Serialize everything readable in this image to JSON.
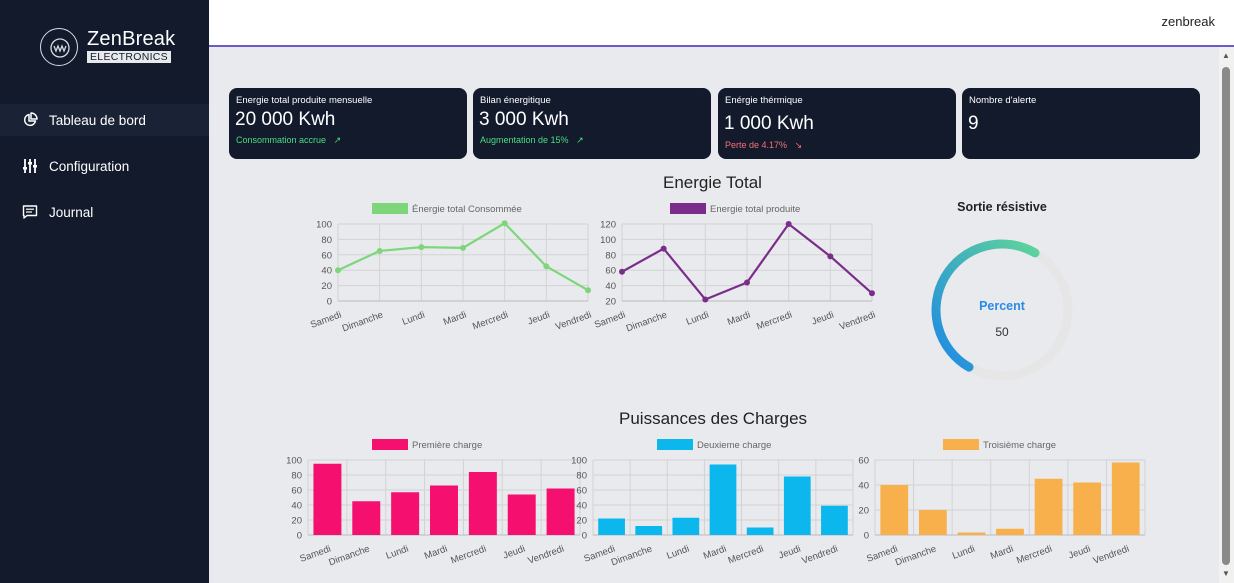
{
  "brand": {
    "name": "ZenBreak",
    "sub": "ELECTRONICS"
  },
  "nav": [
    {
      "label": "Tableau de bord",
      "icon": "pie-chart-icon",
      "active": true
    },
    {
      "label": "Configuration",
      "icon": "sliders-icon",
      "active": false
    },
    {
      "label": "Journal",
      "icon": "message-square-icon",
      "active": false
    }
  ],
  "user": "zenbreak",
  "cards": [
    {
      "title": "Energie total produite mensuelle",
      "value": "20 000 Kwh",
      "sub": "Consommation accrue",
      "arrow": "↗",
      "sub_color": "#4ade80"
    },
    {
      "title": "Bilan énergitique",
      "value": "3 000 Kwh",
      "sub": "Augmentation de 15%",
      "arrow": "↗",
      "sub_color": "#4ade80"
    },
    {
      "title": "Enérgie thérmique",
      "value": "1 000 Kwh",
      "sub": "Perte de 4.17%",
      "arrow": "↘",
      "sub_color": "#f87171"
    },
    {
      "title": "Nombre d'alerte",
      "value": "9",
      "sub": "",
      "arrow": "",
      "sub_color": "#4ade80"
    }
  ],
  "sections": {
    "energie": "Energie Total",
    "puissances": "Puissances des Charges"
  },
  "gauge": {
    "title": "Sortie résistive",
    "label": "Percent",
    "value": 50,
    "value_text": "50",
    "colors": [
      "#1e88e5",
      "#5fd49a"
    ]
  },
  "chart_data": [
    {
      "type": "line",
      "title": "",
      "series_name": "Énergie total Consommée",
      "color": "#7ed67a",
      "categories": [
        "Samedi",
        "Dimanche",
        "Lundi",
        "Mardi",
        "Mercredi",
        "Jeudi",
        "Vendredi"
      ],
      "values": [
        40,
        65,
        70,
        69,
        101,
        45,
        14
      ],
      "ylim": [
        0,
        100
      ],
      "yticks": [
        0,
        20,
        40,
        60,
        80,
        100
      ],
      "xlabel": "",
      "ylabel": ""
    },
    {
      "type": "line",
      "title": "",
      "series_name": "Energie total produite",
      "color": "#7b2d8b",
      "categories": [
        "Samedi",
        "Dimanche",
        "Lundi",
        "Mardi",
        "Mercredi",
        "Jeudi",
        "Vendredi"
      ],
      "values": [
        58,
        88,
        22,
        44,
        120,
        78,
        30
      ],
      "ylim": [
        20,
        120
      ],
      "yticks": [
        20,
        40,
        60,
        80,
        100,
        120
      ],
      "xlabel": "",
      "ylabel": ""
    },
    {
      "type": "bar",
      "title": "",
      "series_name": "Première charge",
      "color": "#f50f6e",
      "categories": [
        "Samedi",
        "Dimanche",
        "Lundi",
        "Mardi",
        "Mercredi",
        "Jeudi",
        "Vendredi"
      ],
      "values": [
        95,
        45,
        57,
        66,
        84,
        54,
        62
      ],
      "ylim": [
        0,
        100
      ],
      "yticks": [
        0,
        20,
        40,
        60,
        80,
        100
      ],
      "xlabel": "",
      "ylabel": ""
    },
    {
      "type": "bar",
      "title": "",
      "series_name": "Deuxieme charge",
      "color": "#0cb7ee",
      "categories": [
        "Samedi",
        "Dimanche",
        "Lundi",
        "Mardi",
        "Mercredi",
        "Jeudi",
        "Vendredi"
      ],
      "values": [
        22,
        12,
        23,
        94,
        10,
        78,
        39
      ],
      "ylim": [
        0,
        100
      ],
      "yticks": [
        0,
        20,
        40,
        60,
        80,
        100
      ],
      "xlabel": "",
      "ylabel": ""
    },
    {
      "type": "bar",
      "title": "",
      "series_name": "Troisième charge",
      "color": "#f8b04c",
      "categories": [
        "Samedi",
        "Dimanche",
        "Lundi",
        "Mardi",
        "Mercredi",
        "Jeudi",
        "Vendredi"
      ],
      "values": [
        40,
        20,
        2,
        5,
        45,
        42,
        58
      ],
      "ylim": [
        0,
        60
      ],
      "yticks": [
        0,
        20,
        40,
        60
      ],
      "xlabel": "",
      "ylabel": ""
    }
  ]
}
